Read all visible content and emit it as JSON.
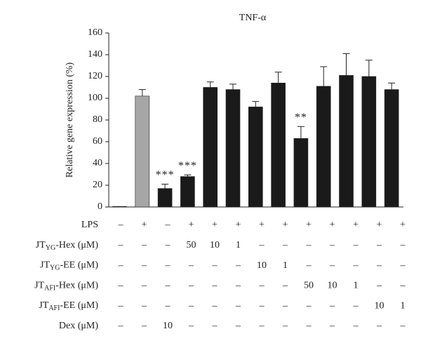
{
  "chart_data": {
    "type": "bar",
    "title": "TNF-α",
    "y_label": "Relative gene expression (%)",
    "categories": [
      null,
      null,
      null,
      null,
      null,
      null,
      null,
      null,
      null,
      null,
      null,
      null,
      null
    ],
    "values": [
      0.5,
      102,
      17,
      28,
      110,
      108,
      92,
      114,
      63,
      111,
      121,
      120,
      108
    ],
    "errors": [
      0,
      6,
      4,
      1.5,
      5,
      5,
      5,
      10,
      11,
      18,
      20,
      15,
      6
    ],
    "colors": [
      "#1a1a1a",
      "#a6a6a6",
      "#1a1a1a",
      "#1a1a1a",
      "#1a1a1a",
      "#1a1a1a",
      "#1a1a1a",
      "#1a1a1a",
      "#1a1a1a",
      "#1a1a1a",
      "#1a1a1a",
      "#1a1a1a",
      "#1a1a1a"
    ],
    "annotations": [
      null,
      null,
      "***",
      "***",
      null,
      null,
      null,
      null,
      "**",
      null,
      null,
      null,
      null
    ],
    "ylim": [
      0,
      160
    ],
    "yticks": [
      0,
      20,
      40,
      60,
      80,
      100,
      120,
      140,
      160
    ]
  },
  "table": {
    "rows": [
      {
        "label": "LPS",
        "sub": null,
        "suffix": null,
        "cells": [
          "–",
          "+",
          "–",
          "+",
          "+",
          "+",
          "+",
          "+",
          "+",
          "+",
          "+",
          "+",
          "+"
        ]
      },
      {
        "label": "JT",
        "sub": "YG",
        "suffix": "-Hex (μM)",
        "cells": [
          "–",
          "–",
          "–",
          "50",
          "10",
          "1",
          "–",
          "–",
          "–",
          "–",
          "–",
          "–",
          "–"
        ]
      },
      {
        "label": "JT",
        "sub": "YG",
        "suffix": "-EE (μM)",
        "cells": [
          "–",
          "–",
          "–",
          "–",
          "–",
          "–",
          "10",
          "1",
          "–",
          "–",
          "–",
          "–",
          "–"
        ]
      },
      {
        "label": "JT",
        "sub": "AFI",
        "suffix": "-Hex (μM)",
        "cells": [
          "–",
          "–",
          "–",
          "–",
          "–",
          "–",
          "–",
          "–",
          "50",
          "10",
          "1",
          "–",
          "–"
        ]
      },
      {
        "label": "JT",
        "sub": "AFI",
        "suffix": "-EE (μM)",
        "cells": [
          "–",
          "–",
          "–",
          "–",
          "–",
          "–",
          "–",
          "–",
          "–",
          "–",
          "–",
          "10",
          "1"
        ]
      },
      {
        "label": "Dex (μM)",
        "sub": null,
        "suffix": null,
        "cells": [
          "–",
          "–",
          "10",
          "–",
          "–",
          "–",
          "–",
          "–",
          "–",
          "–",
          "–",
          "–",
          "–"
        ]
      }
    ]
  }
}
